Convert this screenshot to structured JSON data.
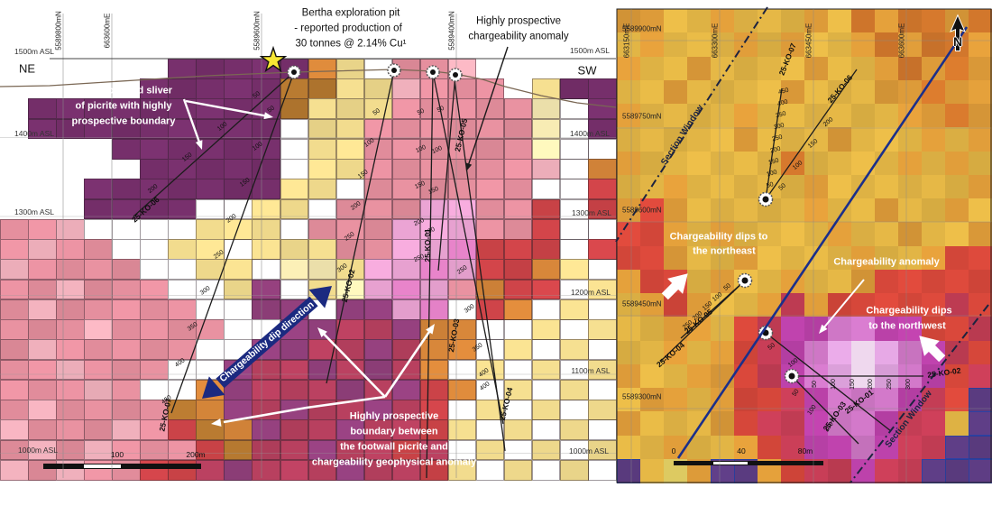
{
  "figure": {
    "type": "geophysics_chargeability_section_and_plan",
    "accent_colors": {
      "navy": "#1b2a80",
      "white_annotation": "#ffffff",
      "star_yellow": "#f7e733"
    }
  },
  "section": {
    "corner_left": "NE",
    "corner_right": "SW",
    "top_axis_labels": [
      "5589800mN",
      "663600mE",
      "5589600mN",
      "5589400mN"
    ],
    "asl_left": [
      "1500m ASL",
      "1400m ASL",
      "1300m ASL",
      "1000m ASL"
    ],
    "asl_right": [
      "1500m ASL",
      "1400m ASL",
      "1300m ASL",
      "1200m ASL",
      "1100m ASL",
      "1000m ASL"
    ],
    "callouts": {
      "bertha": [
        "Bertha exploration pit",
        "-  reported production of",
        "30 tonnes @ 2.14% Cu¹"
      ],
      "anomaly": [
        "Highly prospective",
        "chargeability anomaly"
      ],
      "fault_sliver": [
        "Fault-bounded sliver",
        "of picrite with highly",
        "prospective boundary"
      ],
      "dip_direction": "Chargeability dip direction",
      "footwall": [
        "Highly prospective",
        "boundary between",
        "the footwall picrite and",
        "chargeability geophysical anomaly"
      ]
    },
    "scalebar_labels": [
      "100",
      "200m"
    ],
    "drillholes": [
      {
        "name": "25-KO-06",
        "ticks": [
          50,
          100,
          150,
          200
        ]
      },
      {
        "name": "25-KO-07",
        "ticks": [
          50,
          100,
          150,
          200,
          250,
          300,
          350,
          400,
          450
        ]
      },
      {
        "name": "25-KO-02",
        "ticks": [
          50,
          100,
          150,
          200,
          250,
          300
        ]
      },
      {
        "name": "25-KO-01",
        "ticks": [
          50,
          100,
          150,
          200,
          250
        ]
      },
      {
        "name": "25-KO-03",
        "ticks": [
          250,
          300,
          350,
          400
        ]
      },
      {
        "name": "25-KO-05",
        "ticks": [
          50,
          100,
          150,
          200
        ]
      },
      {
        "name": "25-KO-04",
        "ticks": [
          400
        ]
      }
    ],
    "grid": {
      "palette": {
        "P": "#e58f9e",
        "p": "#f0b0bc",
        "M": "#e07fc3",
        "m": "#eba4d4",
        "D": "#762f6b",
        "d": "#93407d",
        "C": "#b8405f",
        "R": "#cf4449",
        "O": "#d8873a",
        "B": "#b3772f",
        "Y": "#f2dc8e",
        "y": "#f8ecb4",
        "W": "#ffffff"
      },
      "rows": [
        "......DDDDDOYoPPp.....",
        ".....DDDDDBBYYpPPP.YDD",
        ".DDDDDDDDDBYYYPPPPPyoD",
        ".DDDDDDDDDWYYPPPPPPyoD",
        "....DDDDDDWYYPPPPPPyoo",
        ".....DDDDDWYYPPPPPPpoO",
        "...DDDDDDDYYoPPPPPPooR",
        "...DDDDWoYYoPPPmmPPRoR",
        "PPpWWWWYYYoPPPmmmPPRoo",
        "PpPPWWYYoYYYPPmmMRRRoR",
        "pPPPPWWYYoyyYmmMmRROYo",
        "PPpPPPWWYdWYymMmPORRoY",
        "PpPPPPPWWddWddmMoROoYo",
        "PPPpPPPPWWddCCdOOooYoY",
        "PpPPPPPWWddCCdCOOoYoYo",
        "PPpPPPWWdCCdCdCOoYoYoY",
        "PPPpPWWOdCCCdCdROoYoYo",
        "PpPPPPBOdCdCCdCRoYoYoY",
        "pPPPpPRBOdCCdCCRYoYoYo",
        "PpPpPPPRBCCdCCRCoYoYoY",
        "pPpPPRRCdCCCdCCRYoYoYo"
      ]
    }
  },
  "plan": {
    "north_labels": [
      "5589900mN",
      "5589750mN",
      "5589600mN",
      "5589450mN",
      "5589300mN"
    ],
    "east_labels": [
      "663150mE",
      "663300mE",
      "663450mE",
      "663600mE"
    ],
    "north_arrow": "N",
    "section_window": "Section Window",
    "callouts": {
      "dips_ne": [
        "Chargeability dips to",
        "the northeast"
      ],
      "anomaly": "Chargeability anomaly",
      "dips_nw": [
        "Chargeability dips",
        "to the northwest"
      ]
    },
    "scalebar_labels": [
      "0",
      "40",
      "80m"
    ],
    "drillholes": [
      {
        "name": "25-KO-07",
        "ticks": [
          50,
          100,
          150,
          200,
          250,
          300,
          350,
          400,
          450
        ]
      },
      {
        "name": "25-KO-06",
        "ticks": [
          50,
          100,
          150,
          200
        ]
      },
      {
        "name": "25-KO-05",
        "ticks": []
      },
      {
        "name": "25-KO-04",
        "ticks": [
          50,
          100,
          150,
          200,
          250
        ]
      },
      {
        "name": "25-KO-01",
        "ticks": [
          50,
          100
        ]
      },
      {
        "name": "25-KO-02",
        "ticks": [
          50,
          100,
          150,
          200,
          250,
          300
        ]
      },
      {
        "name": "25-KO-03",
        "ticks": [
          50,
          100,
          150
        ]
      }
    ],
    "grid": {
      "palette": {
        "Y": "#e2b545",
        "y": "#ead667",
        "o": "#dd9b39",
        "O": "#d2772c",
        "R": "#d6473a",
        "C": "#c43d55",
        "M": "#bd42ab",
        "m": "#cf77c6",
        "L": "#dfa3de",
        "W": "#efd8ee",
        "P": "#5c3c82"
      },
      "rows": [
        "ooYYoYYYoYOoOOoO",
        "YoYYYoYoYYoOoOOo",
        "oYYoYYYYoYYoOoOo",
        "YYoYYYYoYYYooOoo",
        "oYYYYoYYYYYYooOo",
        "YYYYYoYYYoYYYoYo",
        "oYYYYYYOYYYYoYoY",
        "YYoYYYYYoYYYYYYo",
        "oRoYYYYYoYYoYYoY",
        "RRoYoYYYYoYYoYYo",
        "RRoYYoYYYYoYYoRR",
        "oRRYoYYoYYoRRRRR",
        "YoRoYYoCoRRRRRCR",
        "YYooYRCMMmmMMRRC",
        "YYoYoRCMmLWLmMCR",
        "oYYooRCMmLWLmMRC",
        "YooYoRRCMmmmMCRP",
        "oYYYoRCCMmmMCCYP",
        "YYoYYoRCMMmMCCPP",
        "PYyoPPoRCCMCCPPP"
      ]
    }
  }
}
